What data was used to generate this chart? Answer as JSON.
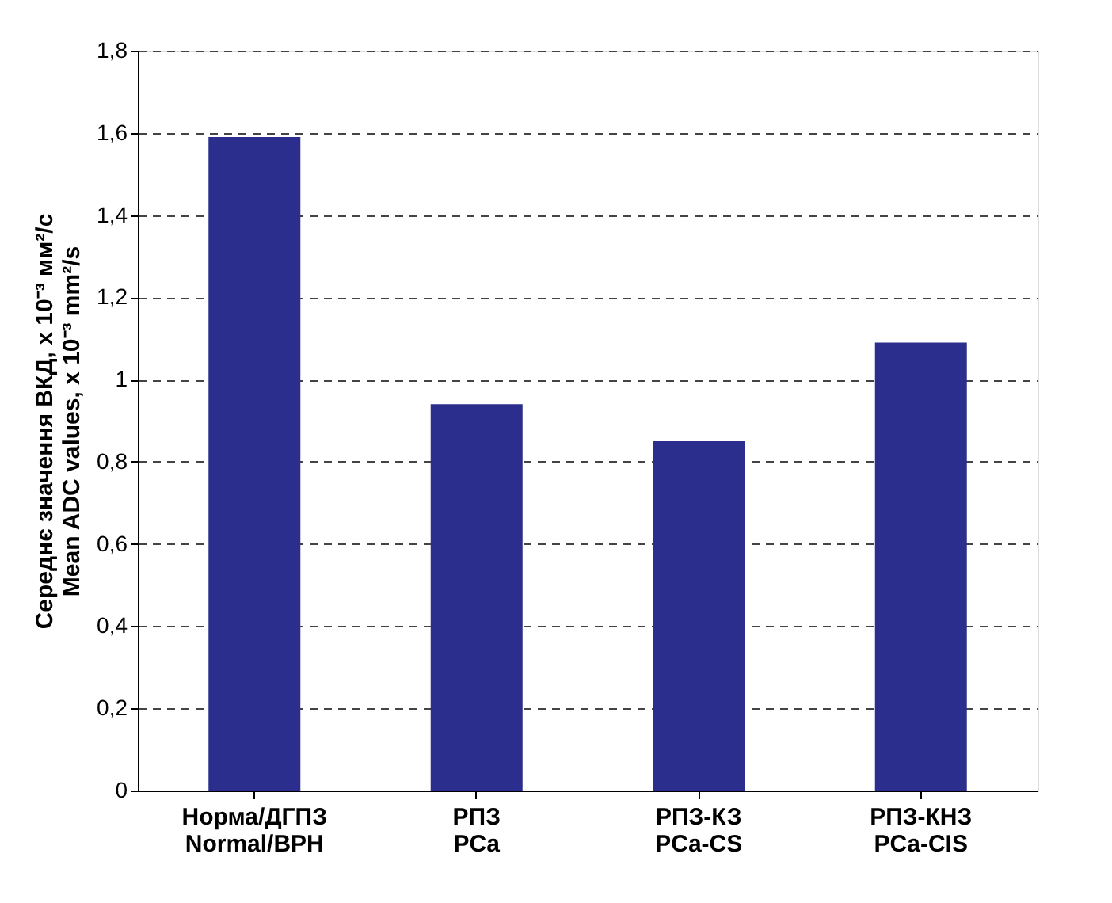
{
  "chart_data": {
    "type": "bar",
    "categories": [
      "Норма/ДГПЗ\nNormal/BPH",
      "РПЗ\nPCa",
      "РПЗ-КЗ\nPCa-CS",
      "РПЗ-КНЗ\nPCa-CIS"
    ],
    "values": [
      1.59,
      0.94,
      0.85,
      1.09
    ],
    "color": "#2b2e8c",
    "ylabel": "Середнє значення ВКД, x 10⁻³ мм²/с\nMean ADC values, x 10⁻³ mm²/s",
    "ylim": [
      0,
      1.8
    ],
    "yticks": [
      0,
      {
        "value": 0.2,
        "label": "0,2"
      },
      {
        "value": 0.4,
        "label": "0,4"
      },
      {
        "value": 0.6,
        "label": "0,6"
      },
      {
        "value": 0.8,
        "label": "0,8"
      },
      1,
      {
        "value": 1.2,
        "label": "1,2"
      },
      {
        "value": 1.4,
        "label": "1,4"
      },
      {
        "value": 1.6,
        "label": "1,6"
      },
      {
        "value": 1.8,
        "label": "1,8"
      }
    ],
    "grid": "y"
  }
}
